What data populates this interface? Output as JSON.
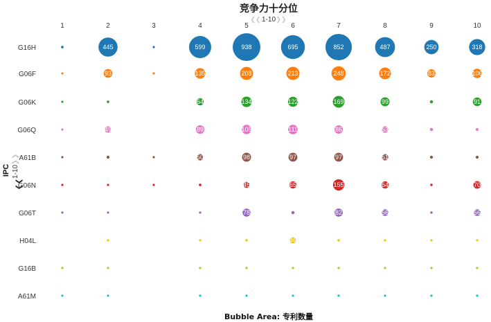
{
  "chart_data": {
    "type": "bubble-matrix",
    "title": "竞争力十分位",
    "x_pager": {
      "range_label": "1-10",
      "prev_icon": "double-chevron-left-icon",
      "next_icon": "double-chevron-right-icon"
    },
    "y_pager": {
      "range_label": "1-10",
      "prev_icon": "double-chevron-up-icon",
      "next_icon": "double-chevron-down-icon"
    },
    "ylabel": "IPC",
    "size_legend": "Bubble Area:  专利数量",
    "x_categories": [
      "1",
      "2",
      "3",
      "4",
      "5",
      "6",
      "7",
      "8",
      "9",
      "10"
    ],
    "y_categories": [
      "G16H",
      "G06F",
      "G06K",
      "G06Q",
      "A61B",
      "G06N",
      "G06T",
      "H04L",
      "G16B",
      "A61M"
    ],
    "series": [
      {
        "name": "G16H",
        "color": "#1f77b4",
        "values": [
          8,
          445,
          4,
          599,
          938,
          695,
          852,
          487,
          250,
          318
        ],
        "labels": [
          "",
          "445",
          "",
          "599",
          "938",
          "695",
          "852",
          "487",
          "250",
          "318"
        ]
      },
      {
        "name": "G06F",
        "color": "#ff7f0e",
        "values": [
          2,
          93,
          1,
          135,
          208,
          213,
          248,
          172,
          83,
          106
        ],
        "labels": [
          "",
          "93",
          "",
          "135",
          "208",
          "213",
          "248",
          "172",
          "83",
          "106"
        ]
      },
      {
        "name": "G06K",
        "color": "#2ca02c",
        "values": [
          1,
          8,
          null,
          64,
          134,
          122,
          169,
          99,
          12,
          91
        ],
        "labels": [
          "",
          "",
          "",
          "64",
          "134",
          "122",
          "169",
          "99",
          "",
          "91"
        ]
      },
      {
        "name": "G06Q",
        "color": "#e377c2",
        "values": [
          2,
          49,
          null,
          89,
          105,
          111,
          86,
          53,
          12,
          10
        ],
        "labels": [
          "",
          "49",
          "",
          "89",
          "105",
          "111",
          "86",
          "53",
          "",
          ""
        ]
      },
      {
        "name": "A61B",
        "color": "#8c564b",
        "values": [
          1,
          11,
          1,
          50,
          98,
          97,
          97,
          51,
          11,
          11
        ],
        "labels": [
          "",
          "",
          "",
          "50",
          "98",
          "97",
          "97",
          "51",
          "",
          ""
        ]
      },
      {
        "name": "G06N",
        "color": "#d62728",
        "values": [
          2,
          1,
          1,
          8,
          45,
          65,
          155,
          64,
          7,
          70
        ],
        "labels": [
          "",
          "",
          "",
          "",
          "45",
          "65",
          "155",
          "64",
          "",
          "70"
        ]
      },
      {
        "name": "G06T",
        "color": "#9467bd",
        "values": [
          1,
          3,
          null,
          6,
          78,
          12,
          82,
          56,
          7,
          56
        ],
        "labels": [
          "",
          "",
          "",
          "",
          "78",
          "",
          "82",
          "56",
          "",
          "56"
        ]
      },
      {
        "name": "H04L",
        "color": "#f2c100",
        "values": [
          null,
          6,
          null,
          6,
          7,
          46,
          7,
          6,
          4,
          3
        ],
        "labels": [
          "",
          "",
          "",
          "",
          "",
          "46",
          "",
          "",
          "",
          ""
        ]
      },
      {
        "name": "G16B",
        "color": "#bcbd22",
        "values": [
          1,
          1,
          null,
          1,
          4,
          4,
          4,
          1,
          1,
          1
        ],
        "labels": [
          "",
          "",
          "",
          "",
          "",
          "",
          "",
          "",
          "",
          ""
        ]
      },
      {
        "name": "A61M",
        "color": "#17becf",
        "values": [
          1,
          1,
          null,
          4,
          4,
          1,
          4,
          2,
          1,
          2
        ],
        "labels": [
          "",
          "",
          "",
          "",
          "",
          "",
          "",
          "",
          "",
          ""
        ]
      }
    ],
    "legend": "none",
    "grid": false
  }
}
